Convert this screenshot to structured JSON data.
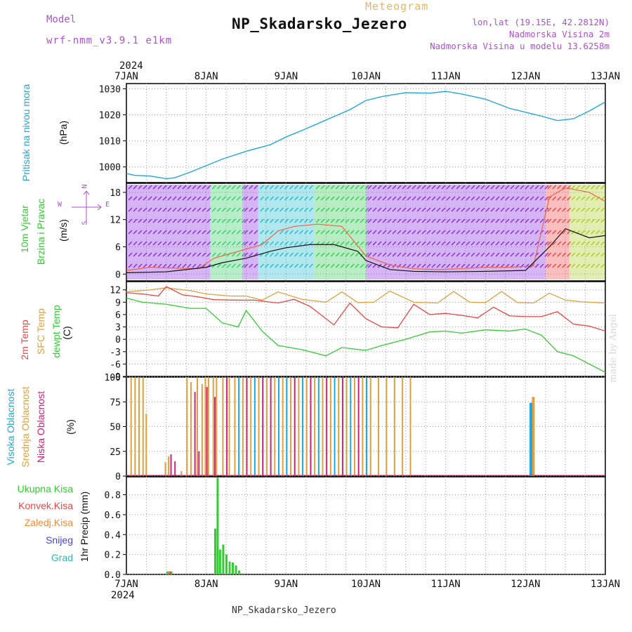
{
  "header": {
    "model_label": "Model",
    "model_name": "wrf-nmm_v3.9.1 e1km",
    "meteogram_label": "Meteogram",
    "station_title": "NP_Skadarsko_Jezero",
    "lonlat": "lon,lat (19.15E, 42.2812N)",
    "elevation": "Nadmorska Visina 2m",
    "model_elevation": "Nadmorska Visina u modelu 13.6258m",
    "year_top": "2024"
  },
  "footer": {
    "station": "NP_Skadarsko_Jezero",
    "year_bottom": "2024",
    "credit": "made by Angel"
  },
  "colors": {
    "pressure": "#1fa8e0",
    "temp_2m": "#ee4444",
    "sfc_temp": "#e0a040",
    "dewpoint": "#33cc33",
    "visoka": "#1fa8e0",
    "srednja": "#e0a040",
    "niska": "#cc2277",
    "ukupna": "#33cc33",
    "konvek": "#ee4444",
    "zaledj": "#ff8833",
    "snijeg": "#4444dd",
    "grad": "#33bbaa",
    "wind_compass": "#b04fd6"
  },
  "wind_compass": {
    "n": "N",
    "w": "W",
    "e": "E",
    "s": "S"
  },
  "chart_data": [
    {
      "type": "line",
      "panel": "pressure",
      "ylabel_name": "Pritisak na nivou mora",
      "ylabel_unit": "(hPa)",
      "x_ticks": [
        "7JAN",
        "8JAN",
        "9JAN",
        "10JAN",
        "11JAN",
        "12JAN",
        "13JAN"
      ],
      "yticks": [
        1000,
        1010,
        1020,
        1030
      ],
      "ylim": [
        994,
        1032
      ],
      "grid": true,
      "series": [
        {
          "x": [
            0,
            0.1,
            0.3,
            0.5,
            0.6,
            0.8,
            1.0,
            1.2,
            1.5,
            1.8,
            2.0,
            2.2,
            2.5,
            2.8,
            3.0,
            3.2,
            3.5,
            3.8,
            4.0,
            4.2,
            4.5,
            4.8,
            5.0,
            5.2,
            5.4,
            5.6,
            5.8,
            6.0
          ],
          "values": [
            997.5,
            996.8,
            996.5,
            995.5,
            995.8,
            998,
            1000.5,
            1003,
            1006,
            1008.5,
            1011.5,
            1014,
            1018,
            1022,
            1025.5,
            1027,
            1028.5,
            1028.3,
            1029,
            1028,
            1026,
            1022.5,
            1021,
            1019.5,
            1017.8,
            1018.5,
            1021.5,
            1025
          ]
        }
      ]
    },
    {
      "type": "line",
      "panel": "wind",
      "ylabel_name": "10m Vjetar",
      "ylabel_name2": "Brzina i Pravac",
      "ylabel_unit": "(m/s)",
      "yticks": [
        0,
        6,
        12,
        18
      ],
      "ylim": [
        -1.5,
        20
      ],
      "grid": true,
      "series": [
        {
          "name": "gust",
          "x": [
            0,
            0.3,
            0.6,
            0.9,
            1.1,
            1.3,
            1.5,
            1.7,
            1.9,
            2.1,
            2.4,
            2.7,
            3.0,
            3.3,
            3.6,
            3.9,
            4.2,
            4.5,
            4.8,
            5.1,
            5.3,
            5.5,
            5.8,
            6.0
          ],
          "values": [
            0.8,
            1.5,
            1.3,
            1.2,
            3.5,
            4.5,
            5.5,
            6.5,
            9.5,
            10.5,
            11,
            10.5,
            4,
            2,
            1.2,
            1,
            1.2,
            1.5,
            1.5,
            1.8,
            17,
            19,
            18,
            16
          ]
        },
        {
          "name": "speed",
          "x": [
            0,
            0.5,
            1.0,
            1.2,
            1.5,
            1.8,
            2.0,
            2.3,
            2.6,
            2.9,
            3.0,
            3.3,
            3.6,
            4.0,
            4.5,
            5.0,
            5.3,
            5.5,
            5.8,
            6.0
          ],
          "values": [
            0.3,
            0.5,
            1.5,
            2.5,
            3.5,
            5,
            5.8,
            6.5,
            6.5,
            5,
            3,
            1,
            0.6,
            0.5,
            0.6,
            0.8,
            6,
            10,
            8,
            8.5
          ]
        }
      ]
    },
    {
      "type": "line",
      "panel": "temperature",
      "ylabel_name": "2m Temp",
      "ylabel_name2": "SFC Temp",
      "ylabel_name3": "dewpt Temp",
      "ylabel_unit": "(C)",
      "yticks": [
        12,
        9,
        6,
        3,
        0,
        -3,
        -6,
        -9
      ],
      "ylim": [
        -9,
        14
      ],
      "grid": true,
      "series": [
        {
          "name": "2m Temp",
          "x": [
            0,
            0.2,
            0.4,
            0.5,
            0.7,
            0.9,
            1.1,
            1.4,
            1.6,
            1.9,
            2.1,
            2.3,
            2.6,
            2.8,
            3.0,
            3.2,
            3.4,
            3.6,
            3.8,
            4.0,
            4.2,
            4.4,
            4.6,
            4.8,
            5.0,
            5.2,
            5.4,
            5.6,
            5.8,
            6.0
          ],
          "values": [
            11.3,
            11,
            10.5,
            12.8,
            10.8,
            10.3,
            9.6,
            9.5,
            9.5,
            8.8,
            9.7,
            8,
            3.5,
            8.8,
            5,
            3,
            2.8,
            8.5,
            6,
            6.3,
            5.8,
            5.2,
            7.8,
            5.7,
            5.5,
            5.5,
            6.7,
            3.7,
            3.2,
            2
          ]
        },
        {
          "name": "SFC Temp",
          "x": [
            0,
            0.3,
            0.5,
            0.8,
            1.0,
            1.3,
            1.5,
            1.7,
            1.9,
            2.2,
            2.5,
            2.7,
            2.9,
            3.1,
            3.3,
            3.6,
            3.9,
            4.1,
            4.3,
            4.5,
            4.7,
            4.9,
            5.1,
            5.3,
            5.5,
            5.7,
            5.9,
            6.0
          ],
          "values": [
            11.5,
            12,
            12.5,
            11.8,
            11,
            10.5,
            10.5,
            9.5,
            11.5,
            9.7,
            9,
            11.5,
            8.9,
            9,
            11.7,
            9,
            8.8,
            11.6,
            9,
            8.9,
            11.6,
            8.9,
            8.8,
            11.2,
            9.5,
            9.1,
            8.9,
            8.8
          ]
        },
        {
          "name": "dewpt Temp",
          "x": [
            0,
            0.2,
            0.5,
            0.8,
            1.0,
            1.2,
            1.4,
            1.5,
            1.7,
            1.9,
            2.2,
            2.5,
            2.7,
            3.0,
            3.2,
            3.5,
            3.8,
            4.0,
            4.2,
            4.5,
            4.8,
            5.0,
            5.2,
            5.4,
            5.6,
            5.8,
            6.0
          ],
          "values": [
            10,
            9,
            8.5,
            7.5,
            7.5,
            4,
            3,
            7,
            2,
            -1.5,
            -2.5,
            -4,
            -2,
            -2.7,
            -1.5,
            0,
            1.8,
            2,
            1.5,
            2.3,
            2,
            2.5,
            1,
            -3,
            -4,
            -6,
            -8
          ]
        }
      ]
    },
    {
      "type": "bar",
      "panel": "clouds",
      "ylabel_name": "Visoka Oblacnost",
      "ylabel_name2": "Srednja Oblacnost",
      "ylabel_name3": "Niska Oblacnost",
      "ylabel_unit": "(%)",
      "yticks": [
        0,
        25,
        50,
        75,
        100
      ],
      "ylim": [
        0,
        100
      ],
      "grid": true,
      "series": [
        {
          "name": "Srednja Oblacnost",
          "x": [
            0.05,
            0.1,
            0.15,
            0.2,
            0.24,
            0.48,
            0.52,
            0.68,
            0.75,
            0.8,
            0.88,
            0.94,
            0.98,
            1.02,
            1.08,
            1.12,
            1.2,
            1.28,
            1.35,
            1.45,
            1.55,
            1.65,
            1.75,
            1.85,
            1.95,
            2.05,
            2.15,
            2.25,
            2.35,
            2.45,
            2.55,
            2.65,
            2.75,
            2.85,
            2.95,
            3.05,
            3.15,
            3.25,
            3.35,
            3.45,
            3.55,
            5.08
          ],
          "values": [
            100,
            100,
            100,
            100,
            63,
            14,
            20,
            5,
            100,
            95,
            100,
            93,
            100,
            100,
            100,
            100,
            100,
            100,
            100,
            100,
            100,
            100,
            100,
            100,
            100,
            100,
            100,
            100,
            100,
            100,
            100,
            100,
            100,
            100,
            100,
            100,
            100,
            100,
            100,
            100,
            100,
            80
          ]
        },
        {
          "name": "Niska Oblacnost",
          "x": [
            0.55,
            0.6,
            0.85,
            0.9,
            1.0,
            1.1,
            1.25,
            1.5,
            1.7,
            1.8,
            2.1,
            2.3,
            2.5,
            2.7,
            2.9
          ],
          "values": [
            22,
            15,
            85,
            25,
            90,
            80,
            100,
            100,
            100,
            100,
            100,
            100,
            100,
            100,
            100
          ]
        },
        {
          "name": "Visoka Oblacnost",
          "x": [
            1.4,
            1.6,
            1.9,
            2.0,
            2.2,
            2.4,
            2.6,
            2.8,
            3.0,
            5.05
          ],
          "values": [
            100,
            100,
            100,
            100,
            100,
            100,
            100,
            100,
            100,
            74
          ]
        }
      ]
    },
    {
      "type": "bar",
      "panel": "precipitation",
      "ylabel_name": "1hr Precip (mm)",
      "yticks": [
        0.0,
        0.2,
        0.4,
        0.6,
        0.8
      ],
      "ylim": [
        0,
        0.98
      ],
      "legend": [
        "Ukupna Kisa",
        "Konvek.Kisa",
        "Zaledj.Kisa",
        "Snijeg",
        "Grad"
      ],
      "grid": true,
      "series": [
        {
          "name": "Ukupna Kisa",
          "x": [
            0.5,
            0.55,
            1.1,
            1.13,
            1.16,
            1.2,
            1.24,
            1.28,
            1.32,
            1.36,
            1.4,
            1.44
          ],
          "values": [
            0.03,
            0.03,
            0.46,
            0.97,
            0.25,
            0.3,
            0.2,
            0.13,
            0.12,
            0.09,
            0.04,
            0.01
          ]
        },
        {
          "name": "Konvek.Kisa",
          "x": [
            0.53
          ],
          "values": [
            0.03
          ]
        }
      ]
    }
  ]
}
